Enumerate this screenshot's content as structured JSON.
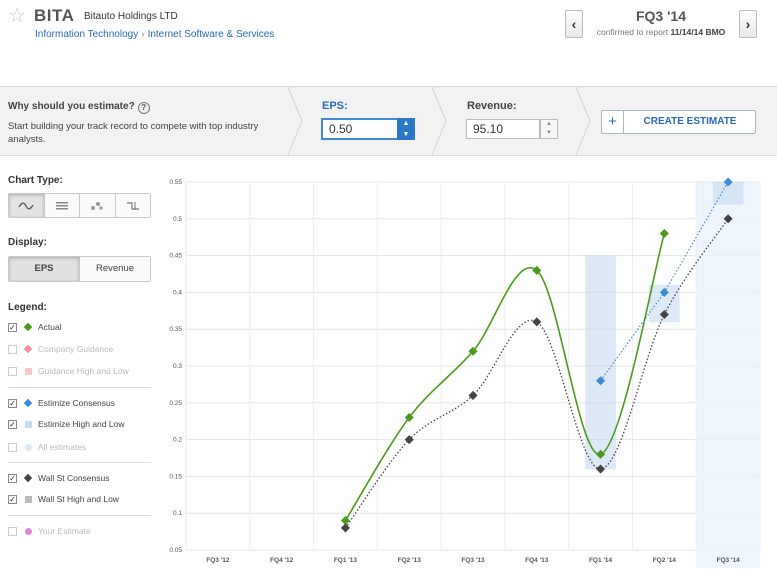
{
  "header": {
    "ticker": "BITA",
    "company": "Bitauto Holdings LTD",
    "sector": "Information Technology",
    "breadcrumb_sep": "›",
    "industry": "Internet Software & Services",
    "quarter": "FQ3 '14",
    "confirm_prefix": "confirmed to report",
    "report_date": "11/14/14",
    "report_time": "BMO",
    "prev_symbol": "‹",
    "next_symbol": "›"
  },
  "estimate_bar": {
    "why_title": "Why should you estimate?",
    "why_sub": "Start building your track record to compete with top industry analysts.",
    "eps_label": "EPS:",
    "eps_value": "0.50",
    "revenue_label": "Revenue:",
    "revenue_value": "95.10",
    "create_plus": "+",
    "create_label": "CREATE ESTIMATE"
  },
  "panel": {
    "chart_type_title": "Chart Type:",
    "chart_types": [
      "line-icon",
      "table-icon",
      "scatter-icon",
      "step-icon"
    ],
    "display_title": "Display:",
    "display_options": [
      "EPS",
      "Revenue"
    ],
    "legend_title": "Legend:",
    "legend": [
      {
        "label": "Actual",
        "checked": true,
        "color": "#4a9a1e",
        "marker": "diamond"
      },
      {
        "label": "Company Guidance",
        "checked": false,
        "color": "#f08c9c",
        "marker": "diamond"
      },
      {
        "label": "Guidance High and Low",
        "checked": false,
        "color": "#f8c8c8",
        "marker": "square"
      },
      {
        "label": "Estimize Consensus",
        "checked": true,
        "color": "#3d8ad6",
        "marker": "diamond"
      },
      {
        "label": "Estimize High and Low",
        "checked": true,
        "color": "#c7dcf2",
        "marker": "square"
      },
      {
        "label": "All estimates",
        "checked": false,
        "color": "#dde7f2",
        "marker": "circle"
      },
      {
        "label": "Wall St Consensus",
        "checked": true,
        "color": "#444444",
        "marker": "diamond"
      },
      {
        "label": "Wall St High and Low",
        "checked": true,
        "color": "#bbbbbb",
        "marker": "square"
      },
      {
        "label": "Your Estimate",
        "checked": false,
        "color": "#d68ed6",
        "marker": "circle"
      }
    ]
  },
  "chart_data": {
    "type": "line",
    "categories": [
      "FQ3 '12",
      "FQ4 '12",
      "FQ1 '13",
      "FQ2 '13",
      "FQ3 '13",
      "FQ4 '13",
      "FQ1 '14",
      "FQ2 '14",
      "FQ3 '14"
    ],
    "ylim": [
      0.05,
      0.55
    ],
    "yticks": [
      "0.05",
      "0.1",
      "0.15",
      "0.2",
      "0.25",
      "0.3",
      "0.35",
      "0.4",
      "0.45",
      "0.5",
      "0.55"
    ],
    "series": [
      {
        "name": "Actual",
        "color": "#4a9a1e",
        "values": [
          null,
          null,
          0.09,
          0.23,
          0.32,
          0.43,
          0.18,
          0.48,
          null
        ]
      },
      {
        "name": "Wall St Consensus",
        "color": "#444444",
        "values": [
          null,
          null,
          0.08,
          0.2,
          0.26,
          0.36,
          0.16,
          0.37,
          0.5
        ]
      },
      {
        "name": "Estimize Consensus",
        "color": "#3d8ad6",
        "values": [
          null,
          null,
          null,
          null,
          null,
          null,
          0.28,
          0.4,
          0.55
        ]
      }
    ],
    "estimize_range": [
      {
        "category": "FQ1 '14",
        "low": 0.16,
        "high": 0.45
      },
      {
        "category": "FQ2 '14",
        "low": 0.36,
        "high": 0.41
      },
      {
        "category": "FQ3 '14",
        "low": 0.52,
        "high": 0.55
      }
    ],
    "grid": true,
    "highlight_category": "FQ3 '14"
  }
}
